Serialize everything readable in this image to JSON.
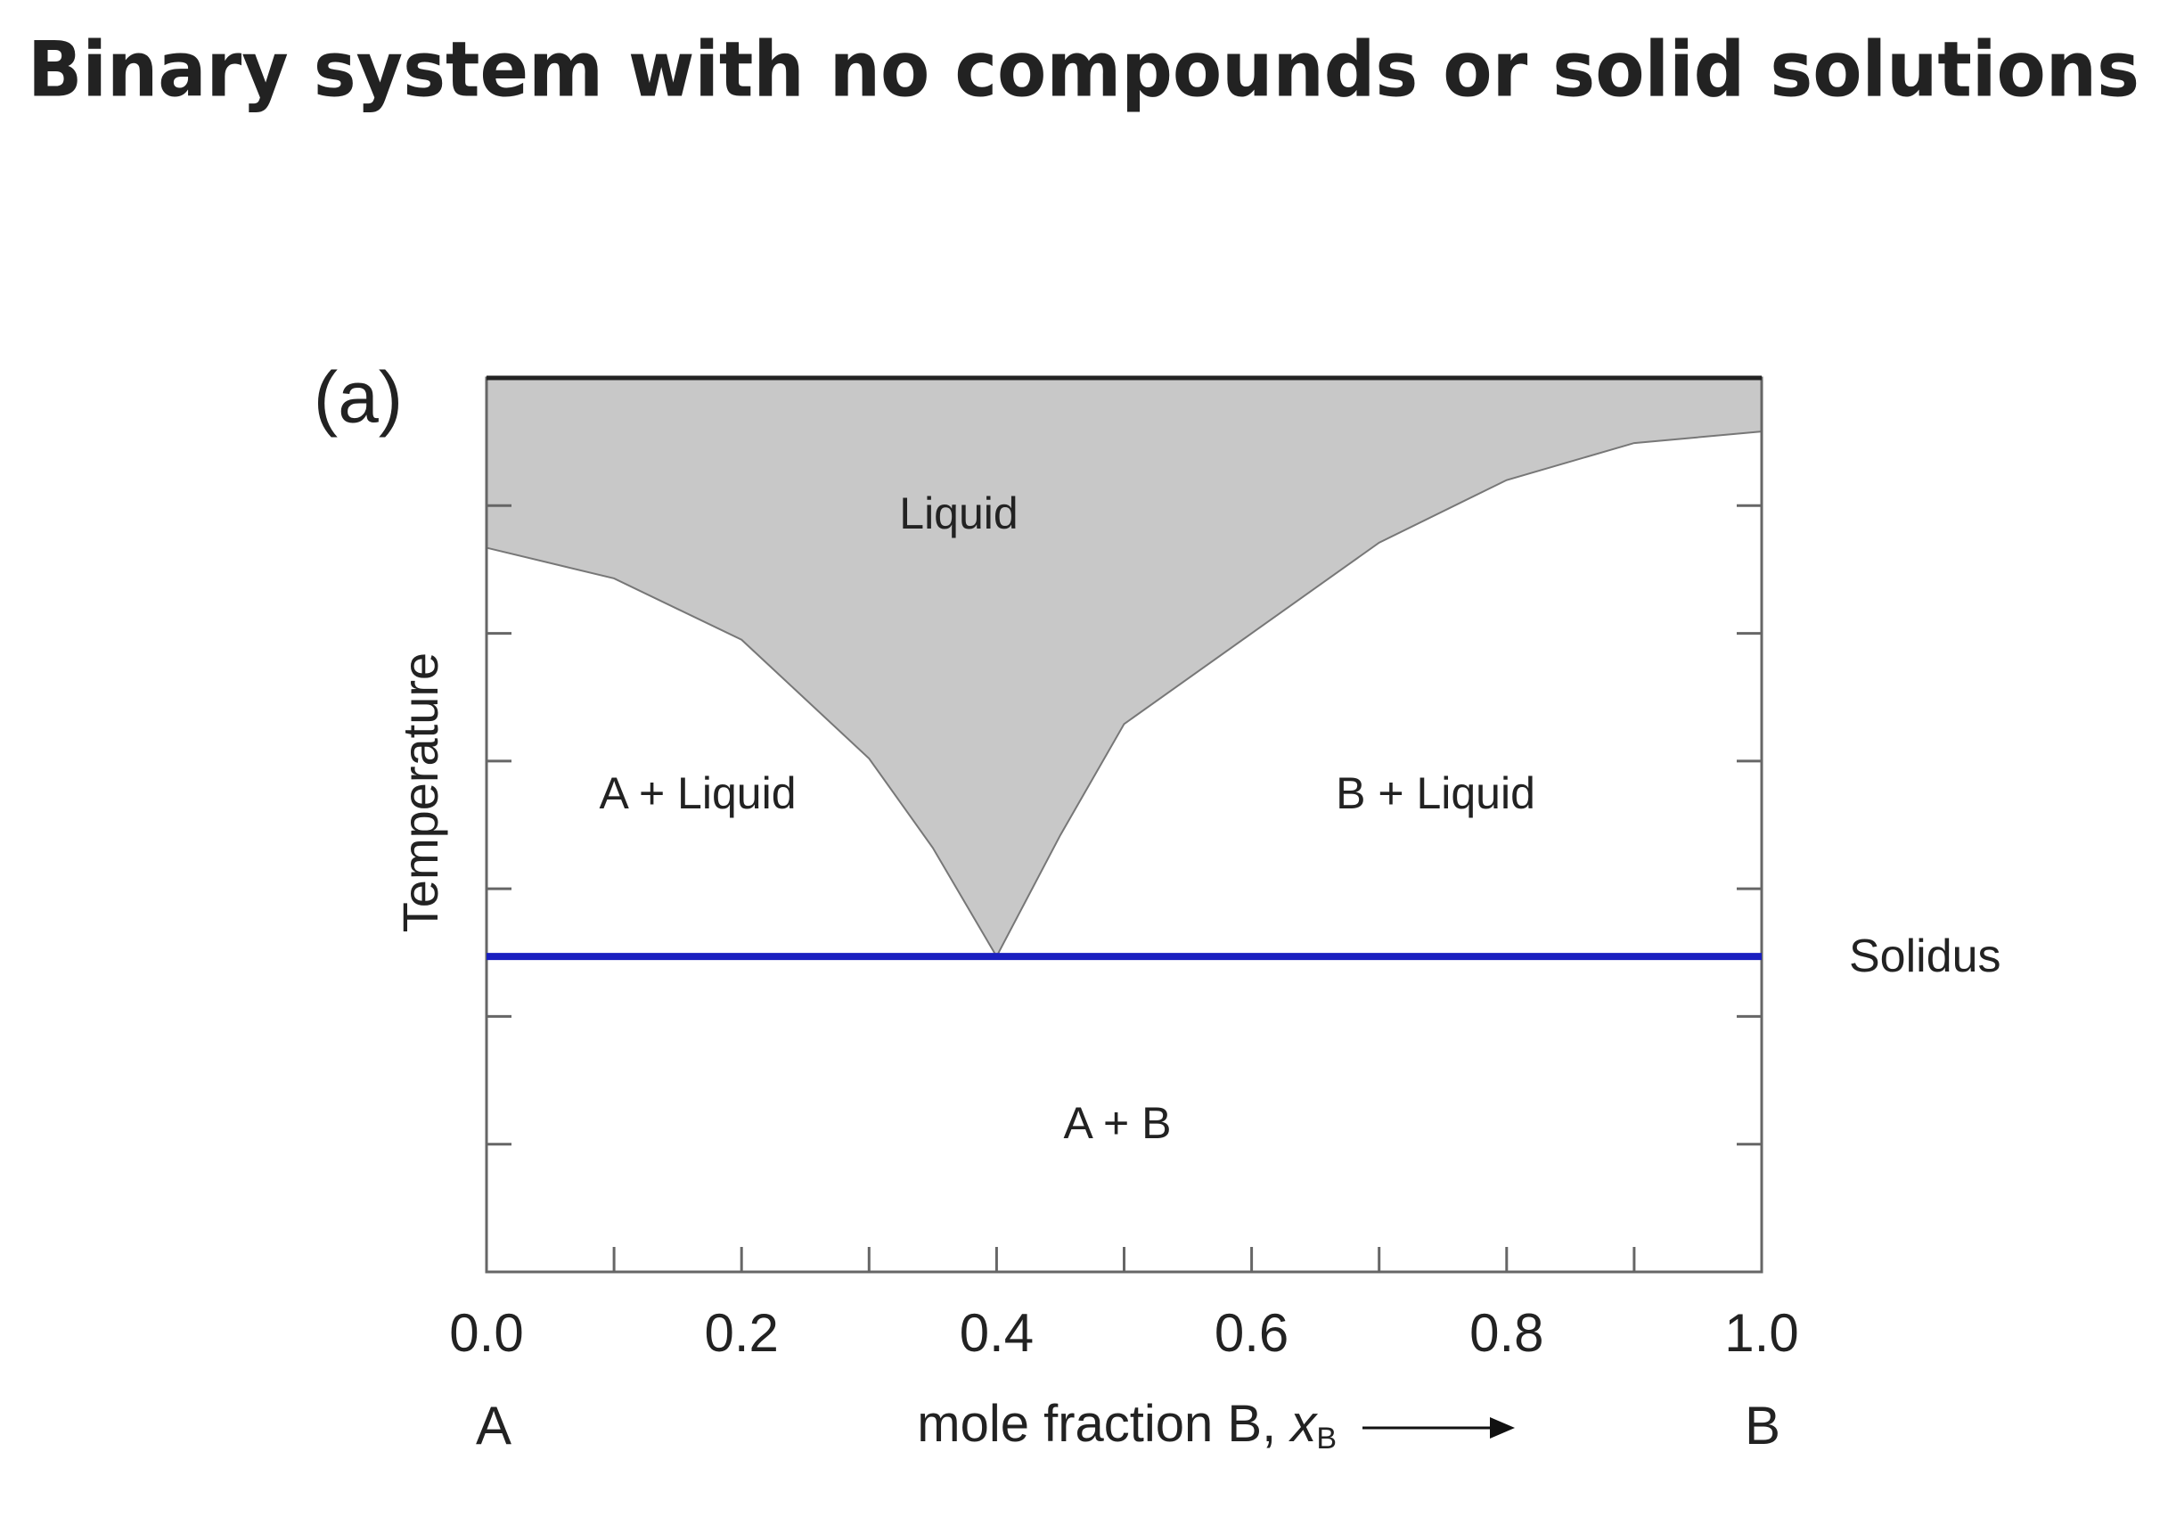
{
  "chart_data": {
    "type": "phase-diagram",
    "title": "Binary system with no compounds or solid solutions",
    "panel_label": "(a)",
    "ylabel": "Temperature",
    "xlabel": "mole fraction B, ",
    "xlabel_var": "x",
    "xlabel_sub": "B",
    "left_end_label": "A",
    "right_end_label": "B",
    "xlim": [
      0,
      1
    ],
    "xticks": [
      {
        "value": 0,
        "label": "0.0"
      },
      {
        "value": 0.2,
        "label": "0.2"
      },
      {
        "value": 0.4,
        "label": "0.4"
      },
      {
        "value": 0.6,
        "label": "0.6"
      },
      {
        "value": 0.8,
        "label": "0.8"
      },
      {
        "value": 1,
        "label": "1.0"
      }
    ],
    "xminorticks": [
      0.1,
      0.3,
      0.5,
      0.7,
      0.9
    ],
    "ylim": [
      0,
      7
    ],
    "yticks": [
      1,
      2,
      3,
      4,
      5,
      6
    ],
    "liquidus": {
      "color": "#c8c8c8",
      "x": [
        0,
        0.1,
        0.2,
        0.3,
        0.35,
        0.4,
        0.45,
        0.5,
        0.6,
        0.7,
        0.8,
        0.9,
        1.0
      ],
      "values": [
        5.67,
        5.43,
        4.95,
        4.02,
        3.32,
        2.47,
        3.42,
        4.29,
        5.0,
        5.71,
        6.2,
        6.49,
        6.58
      ]
    },
    "series": [
      {
        "name": "Solidus",
        "color": "#1a1fc0",
        "x": [
          0,
          1
        ],
        "values": [
          2.47,
          2.47
        ]
      }
    ],
    "annotations": [
      "Liquid",
      "A + Liquid",
      "B + Liquid",
      "A + B"
    ]
  }
}
